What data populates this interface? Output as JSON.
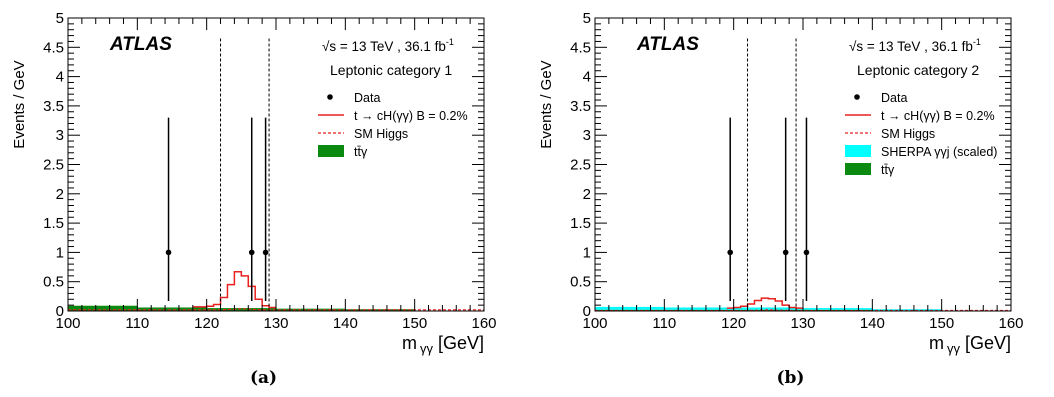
{
  "figure": {
    "captions": [
      "(a)",
      "(b)"
    ]
  },
  "chart_data": [
    {
      "type": "histogram",
      "panel_label": "(a)",
      "experiment": "ATLAS",
      "energy_label": "√s = 13 TeV , 36.1 fb",
      "energy_exp": "-1",
      "category_label": "Leptonic category 1",
      "xlabel_main": "m",
      "xlabel_sub": "γγ",
      "xlabel_unit": " [GeV]",
      "ylabel": "Events / GeV",
      "xlim": [
        100,
        160
      ],
      "ylim": [
        0,
        5
      ],
      "x_ticks": [
        100,
        110,
        120,
        130,
        140,
        150,
        160
      ],
      "y_ticks": [
        0,
        0.5,
        1,
        1.5,
        2,
        2.5,
        3,
        3.5,
        4,
        4.5,
        5
      ],
      "window_lines": [
        122,
        129
      ],
      "legend": [
        {
          "key": "data",
          "label": "Data",
          "style": "marker"
        },
        {
          "key": "signal",
          "label": "t → cH(γγ) B = 0.2%",
          "style": "line-solid",
          "color": "#e8211f"
        },
        {
          "key": "smhiggs",
          "label": "SM Higgs",
          "style": "line-dashed",
          "color": "#e8211f"
        },
        {
          "key": "ttg",
          "label": "tt̄γ",
          "style": "fill",
          "color": "#0b8a12"
        }
      ],
      "ttg": {
        "edges": [
          100,
          110,
          120,
          130,
          140,
          150
        ],
        "values": [
          0.09,
          0.06,
          0.05,
          0.04,
          0.03
        ],
        "color": "#0b8a12"
      },
      "yj": null,
      "signal": {
        "edges": [
          118,
          119,
          120,
          121,
          122,
          123,
          124,
          125,
          126,
          127,
          128,
          129,
          130
        ],
        "values": [
          0.07,
          0.07,
          0.08,
          0.11,
          0.23,
          0.45,
          0.67,
          0.6,
          0.42,
          0.2,
          0.09,
          0.06
        ],
        "color": "#e8211f"
      },
      "smhiggs": {
        "x": [
          100,
          122,
          124,
          125,
          126,
          128,
          160
        ],
        "y": [
          0.02,
          0.02,
          0.03,
          0.04,
          0.03,
          0.02,
          0.02
        ],
        "color": "#e8211f"
      },
      "data": {
        "x": [
          114.5,
          126.5,
          128.5
        ],
        "y": [
          1,
          1,
          1
        ],
        "err_low": [
          0.83,
          0.83,
          0.83
        ],
        "err_high": [
          2.3,
          2.3,
          2.3
        ]
      }
    },
    {
      "type": "histogram",
      "panel_label": "(b)",
      "experiment": "ATLAS",
      "energy_label": "√s = 13 TeV , 36.1 fb",
      "energy_exp": "-1",
      "category_label": "Leptonic category 2",
      "xlabel_main": "m",
      "xlabel_sub": "γγ",
      "xlabel_unit": " [GeV]",
      "ylabel": "Events / GeV",
      "xlim": [
        100,
        160
      ],
      "ylim": [
        0,
        5
      ],
      "x_ticks": [
        100,
        110,
        120,
        130,
        140,
        150,
        160
      ],
      "y_ticks": [
        0,
        0.5,
        1,
        1.5,
        2,
        2.5,
        3,
        3.5,
        4,
        4.5,
        5
      ],
      "window_lines": [
        122,
        129
      ],
      "legend": [
        {
          "key": "data",
          "label": "Data",
          "style": "marker"
        },
        {
          "key": "signal",
          "label": "t → cH(γγ) B = 0.2%",
          "style": "line-solid",
          "color": "#e8211f"
        },
        {
          "key": "smhiggs",
          "label": "SM Higgs",
          "style": "line-dashed",
          "color": "#e8211f"
        },
        {
          "key": "yj",
          "label": "SHERPA γγj (scaled)",
          "style": "fill",
          "color": "#00ffff"
        },
        {
          "key": "ttg",
          "label": "tt̄γ",
          "style": "fill",
          "color": "#0b8a12"
        }
      ],
      "ttg": {
        "edges": [
          100,
          110,
          120,
          130,
          140,
          150
        ],
        "values": [
          0.02,
          0.02,
          0.02,
          0.02,
          0.01
        ],
        "color": "#0b8a12"
      },
      "yj": {
        "edges": [
          100,
          110,
          120,
          130,
          140,
          150
        ],
        "values": [
          0.05,
          0.04,
          0.04,
          0.03,
          0.02
        ],
        "color": "#00ffff"
      },
      "signal": {
        "edges": [
          119,
          120,
          121,
          122,
          123,
          124,
          125,
          126,
          127,
          128,
          129,
          130
        ],
        "values": [
          0.05,
          0.06,
          0.08,
          0.12,
          0.18,
          0.22,
          0.21,
          0.17,
          0.1,
          0.06,
          0.05
        ],
        "color": "#e8211f"
      },
      "smhiggs": {
        "x": [
          100,
          122,
          124,
          125,
          126,
          128,
          160
        ],
        "y": [
          0.01,
          0.01,
          0.015,
          0.02,
          0.015,
          0.01,
          0.01
        ],
        "color": "#e8211f"
      },
      "data": {
        "x": [
          119.5,
          127.5,
          130.5
        ],
        "y": [
          1,
          1,
          1
        ],
        "err_low": [
          0.83,
          0.83,
          0.83
        ],
        "err_high": [
          2.3,
          2.3,
          2.3
        ]
      }
    }
  ]
}
